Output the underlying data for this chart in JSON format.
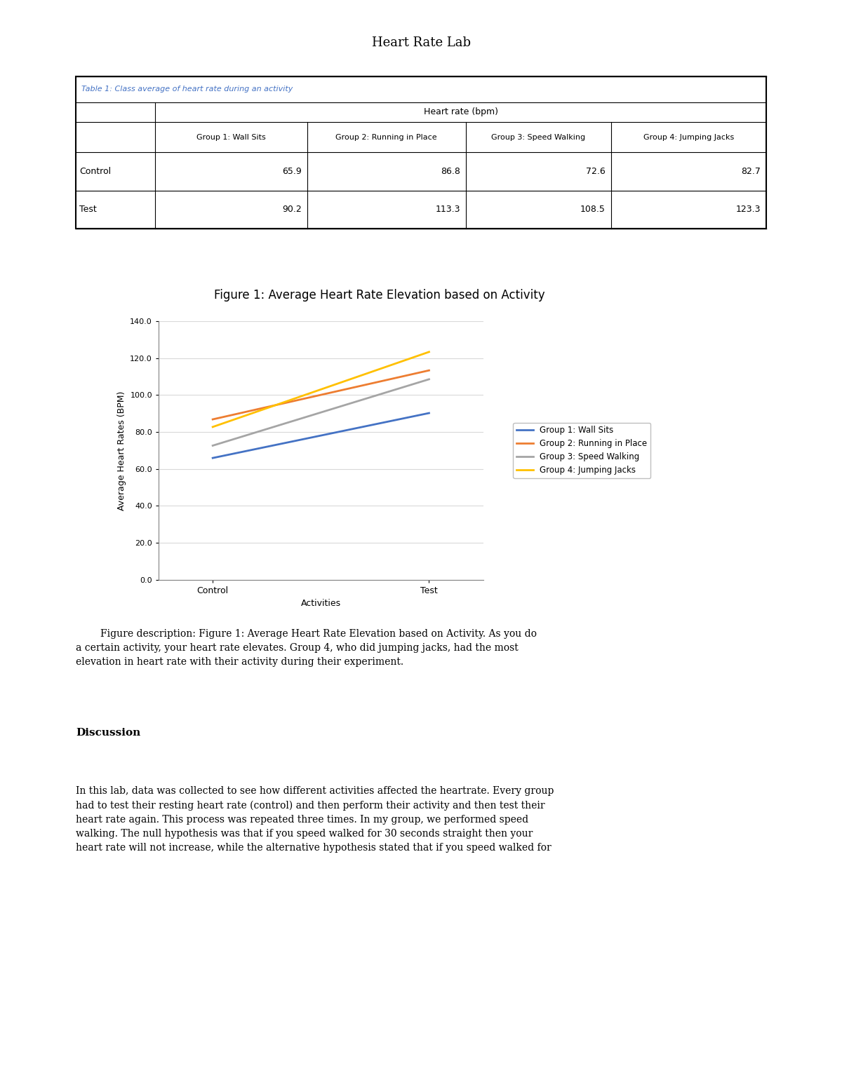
{
  "page_title": "Heart Rate Lab",
  "table_title": "Table 1: Class average of heart rate during an activity",
  "table_header_row1_label": "Heart rate (bpm)",
  "table_col_headers": [
    "Group 1: Wall Sits",
    "Group 2: Running in Place",
    "Group 3: Speed Walking",
    "Group 4: Jumping Jacks"
  ],
  "table_data": [
    [
      "Control",
      65.9,
      86.8,
      72.6,
      82.7
    ],
    [
      "Test",
      90.2,
      113.3,
      108.5,
      123.3
    ]
  ],
  "chart_title": "Figure 1: Average Heart Rate Elevation based on Activity",
  "chart_xlabel": "Activities",
  "chart_ylabel": "Average Heart Rates (BPM)",
  "chart_x_categories": [
    "Control",
    "Test"
  ],
  "chart_ylim": [
    0,
    140
  ],
  "chart_yticks": [
    0.0,
    20.0,
    40.0,
    60.0,
    80.0,
    100.0,
    120.0,
    140.0
  ],
  "series": [
    {
      "label": "Group 1: Wall Sits",
      "color": "#4472C4",
      "control": 65.9,
      "test": 90.2
    },
    {
      "label": "Group 2: Running in Place",
      "color": "#ED7D31",
      "control": 86.8,
      "test": 113.3
    },
    {
      "label": "Group 3: Speed Walking",
      "color": "#A5A5A5",
      "control": 72.6,
      "test": 108.5
    },
    {
      "label": "Group 4: Jumping Jacks",
      "color": "#FFC000",
      "control": 82.7,
      "test": 123.3
    }
  ],
  "figure_desc_indent": "        ",
  "figure_desc_line1": "Figure description: Figure 1: Average Heart Rate Elevation based on Activity. As you do",
  "figure_desc_line2": "a certain activity, your heart rate elevates. Group 4, who did jumping jacks, had the most",
  "figure_desc_line3": "elevation in heart rate with their activity during their experiment.",
  "discussion_title": "Discussion",
  "discussion_text_lines": [
    "In this lab, data was collected to see how different activities affected the heartrate. Every group",
    "had to test their resting heart rate (control) and then perform their activity and then test their",
    "heart rate again. This process was repeated three times. In my group, we performed speed",
    "walking. The null hypothesis was that if you speed walked for 30 seconds straight then your",
    "heart rate will not increase, while the alternative hypothesis stated that if you speed walked for"
  ],
  "bg_color": "#FFFFFF",
  "chart_bg_color": "#FFFFFF",
  "chart_border_color": "#BFBFBF",
  "grid_color": "#D9D9D9",
  "table_border_color": "#000000",
  "table_title_color": "#4472C4"
}
